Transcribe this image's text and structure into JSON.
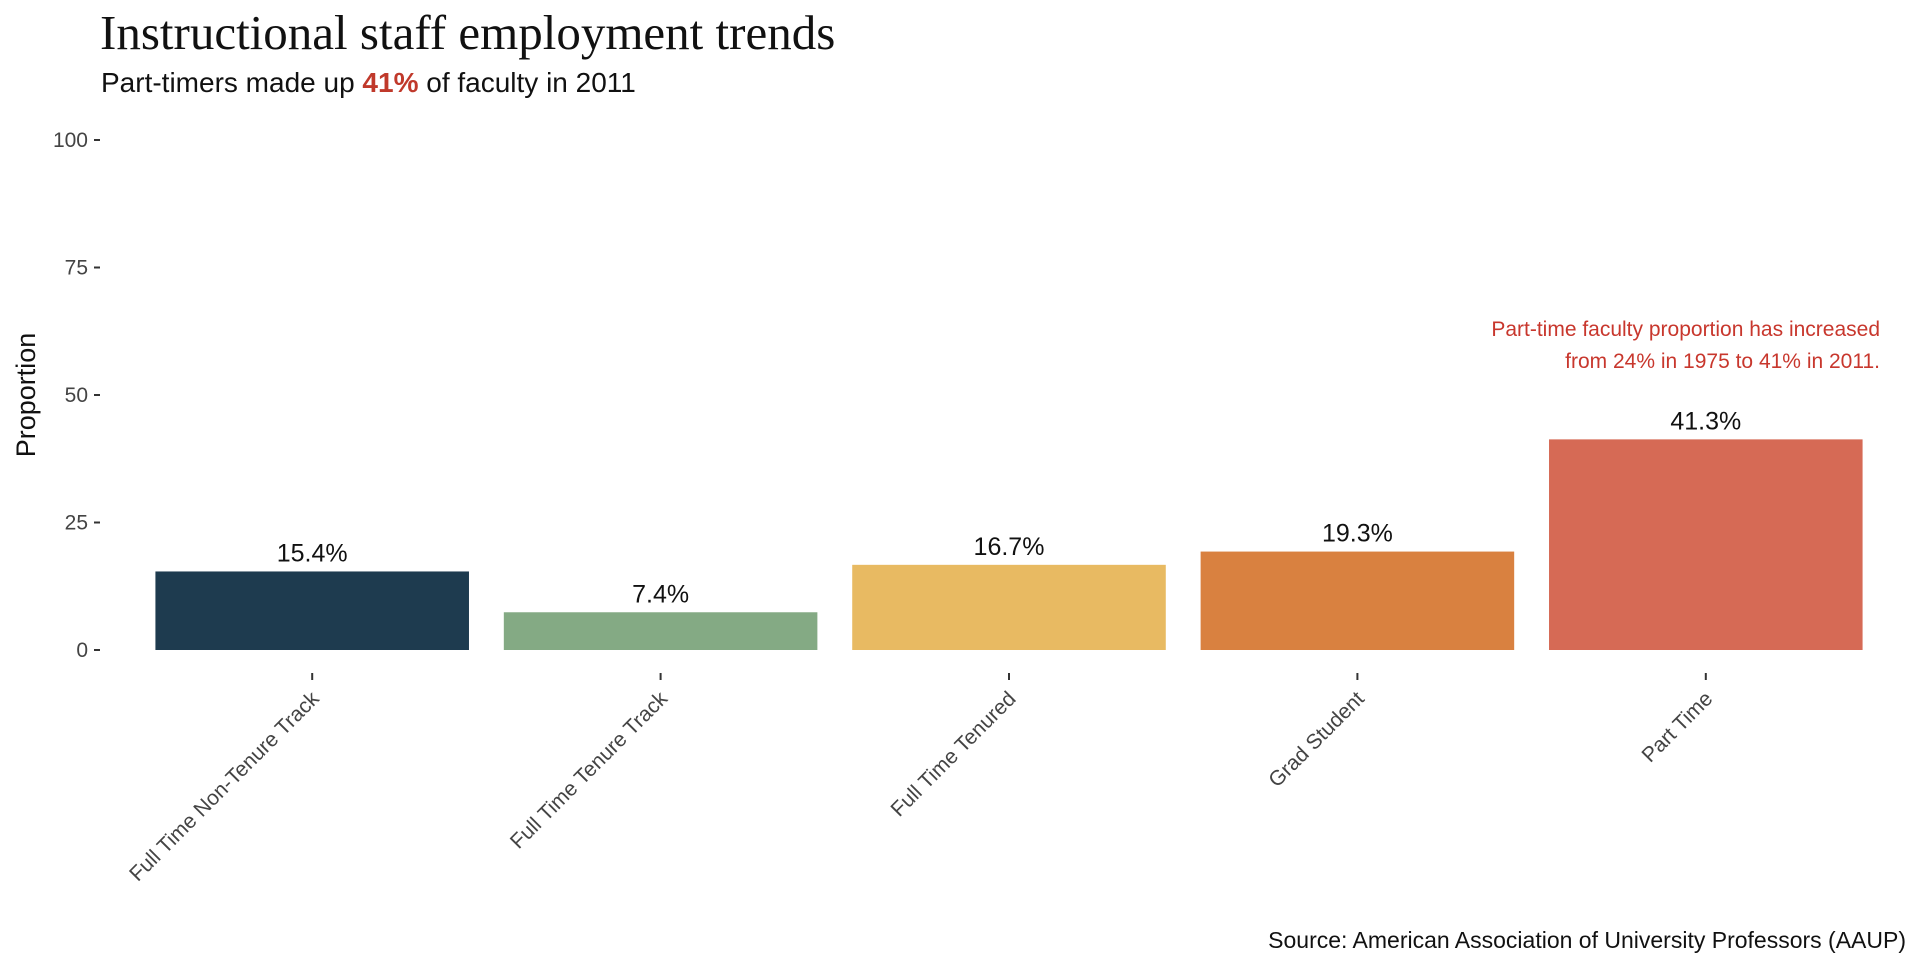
{
  "title": "Instructional staff employment trends",
  "subtitle": {
    "prefix": "Part-timers made up ",
    "highlight": "41%",
    "suffix": " of faculty in 2011"
  },
  "source": "Source: American Association of University Professors (AAUP)",
  "annotation": {
    "line1": "Part-time faculty proportion has increased",
    "line2": "from 24% in 1975 to 41% in 2011.",
    "color": "#c8372d"
  },
  "chart_data": {
    "type": "bar",
    "categories": [
      "Full Time Non-Tenure Track",
      "Full Time Tenure Track",
      "Full Time Tenured",
      "Grad Student",
      "Part Time"
    ],
    "values": [
      15.4,
      7.4,
      16.7,
      19.3,
      41.3
    ],
    "value_labels": [
      "15.4%",
      "7.4%",
      "16.7%",
      "19.3%",
      "41.3%"
    ],
    "colors": [
      "#1e3b4f",
      "#84aa84",
      "#e8ba62",
      "#d98140",
      "#d66a55"
    ],
    "ylabel": "Proportion",
    "xlabel": "",
    "ylim": [
      0,
      100
    ],
    "yticks": [
      0,
      25,
      50,
      75,
      100
    ],
    "grid": false,
    "legend": "none"
  }
}
